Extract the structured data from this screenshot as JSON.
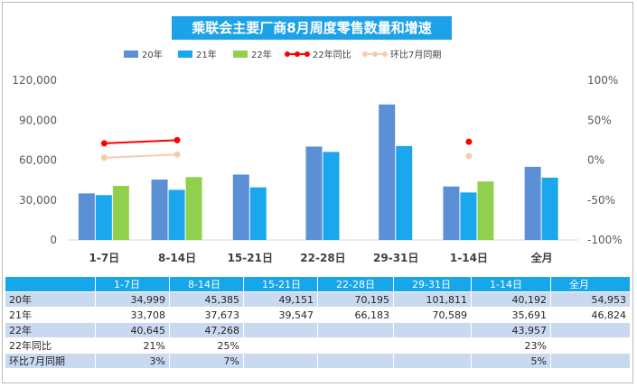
{
  "title": "乘联会主要厂商8月周度零售数量和增速",
  "chart_data": {
    "type": "bar",
    "categories": [
      "1-7日",
      "8-14日",
      "15-21日",
      "22-28日",
      "29-31日",
      "1-14日",
      "全月"
    ],
    "series": [
      {
        "name": "20年",
        "kind": "bar",
        "color": "#5b8fd6",
        "values": [
          34999,
          45385,
          49151,
          70195,
          101811,
          40192,
          54953
        ]
      },
      {
        "name": "21年",
        "kind": "bar",
        "color": "#1aa7ee",
        "values": [
          33708,
          37673,
          39547,
          66183,
          70589,
          35691,
          46824
        ]
      },
      {
        "name": "22年",
        "kind": "bar",
        "color": "#8fd14f",
        "values": [
          40645,
          47268,
          null,
          null,
          null,
          43957,
          null
        ]
      },
      {
        "name": "22年同比",
        "kind": "line",
        "axis": "right",
        "color": "#ff0000",
        "values": [
          21,
          25,
          null,
          null,
          null,
          23,
          null
        ]
      },
      {
        "name": "环比7月同期",
        "kind": "line",
        "axis": "right",
        "color": "#f8cbad",
        "values": [
          3,
          7,
          null,
          null,
          null,
          5,
          null
        ]
      }
    ],
    "y_left": {
      "min": 0,
      "max": 120000,
      "ticks": [
        "0",
        "30,000",
        "60,000",
        "90,000",
        "120,000"
      ]
    },
    "y_right": {
      "min": -100,
      "max": 100,
      "ticks": [
        "-100%",
        "-50%",
        "0%",
        "50%",
        "100%"
      ]
    },
    "legend_position": "top"
  },
  "table": {
    "headers": [
      "1-7日",
      "8-14日",
      "15-21日",
      "22-28日",
      "29-31日",
      "1-14日",
      "全月"
    ],
    "rows": [
      {
        "label": "20年",
        "cells": [
          "34,999",
          "45,385",
          "49,151",
          "70,195",
          "101,811",
          "40,192",
          "54,953"
        ]
      },
      {
        "label": "21年",
        "cells": [
          "33,708",
          "37,673",
          "39,547",
          "66,183",
          "70,589",
          "35,691",
          "46,824"
        ]
      },
      {
        "label": "22年",
        "cells": [
          "40,645",
          "47,268",
          "",
          "",
          "",
          "43,957",
          ""
        ]
      },
      {
        "label": "22年同比",
        "cells": [
          "21%",
          "25%",
          "",
          "",
          "",
          "23%",
          ""
        ]
      },
      {
        "label": "环比7月同期",
        "cells": [
          "3%",
          "7%",
          "",
          "",
          "",
          "5%",
          ""
        ]
      }
    ]
  }
}
